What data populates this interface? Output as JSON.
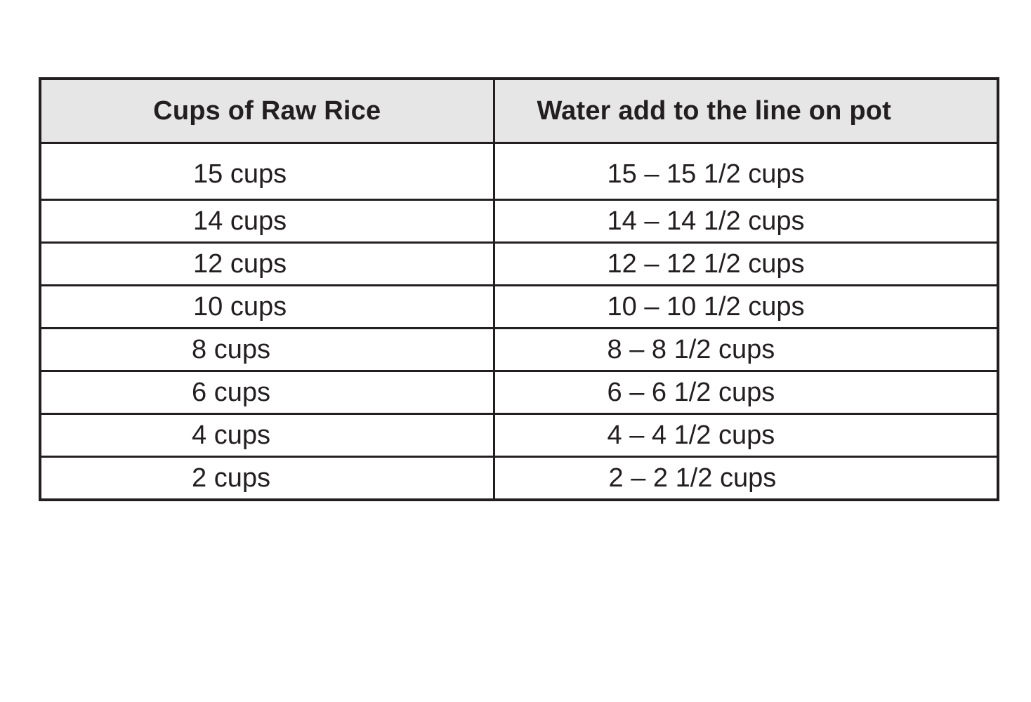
{
  "table": {
    "headers": [
      "Cups of Raw Rice",
      "Water add to the line on pot"
    ],
    "rows": [
      [
        "15 cups",
        "15 – 15 1/2 cups"
      ],
      [
        "14 cups",
        "14 – 14 1/2 cups"
      ],
      [
        "12 cups",
        "12 – 12 1/2 cups"
      ],
      [
        "10 cups",
        "10 – 10 1/2 cups"
      ],
      [
        "8 cups",
        "8 – 8 1/2 cups"
      ],
      [
        "6 cups",
        "6 – 6 1/2 cups"
      ],
      [
        "4 cups",
        "4 – 4 1/2 cups"
      ],
      [
        "2 cups",
        "2 – 2 1/2 cups"
      ]
    ]
  }
}
